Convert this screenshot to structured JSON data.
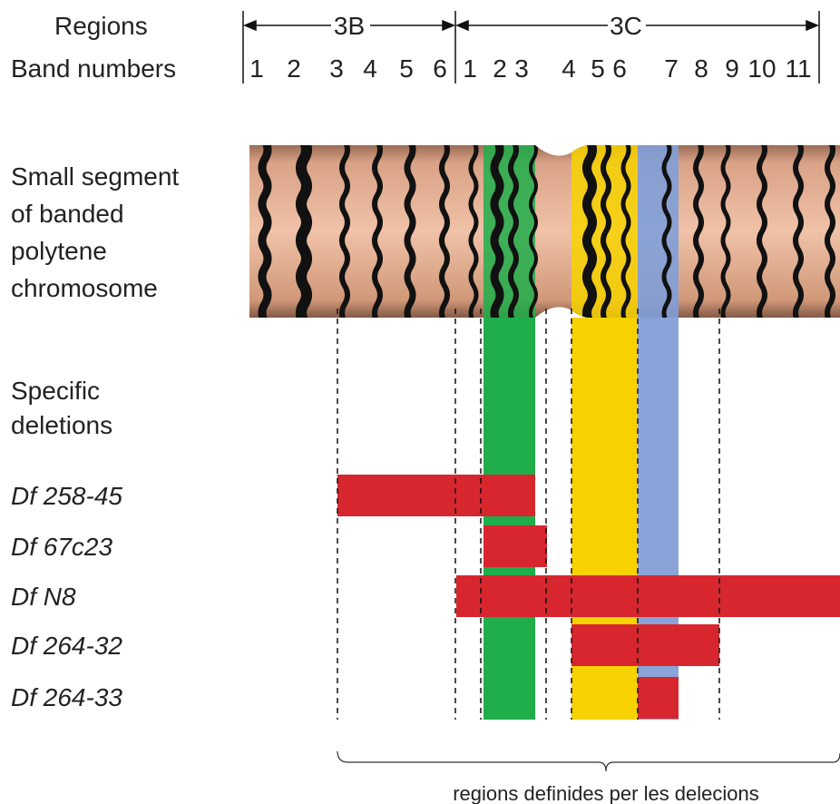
{
  "header": {
    "regions_label": "Regions",
    "band_numbers_label": "Band numbers"
  },
  "regions": [
    {
      "name": "3B",
      "bands": [
        "1",
        "2",
        "3",
        "4",
        "5",
        "6"
      ]
    },
    {
      "name": "3C",
      "bands": [
        "1",
        "2",
        "3",
        "4",
        "5",
        "6",
        "7",
        "8",
        "9",
        "10",
        "11"
      ]
    }
  ],
  "chromosome_label": [
    "Small segment",
    "of banded",
    "polytene",
    "chromosome"
  ],
  "deletions_label": [
    "Specific",
    "deletions"
  ],
  "deletions": [
    "Df 258-45",
    "Df 67c23",
    "Df N8",
    "Df 264-32",
    "Df 264-33"
  ],
  "caption": "regions definides per les delecions"
}
